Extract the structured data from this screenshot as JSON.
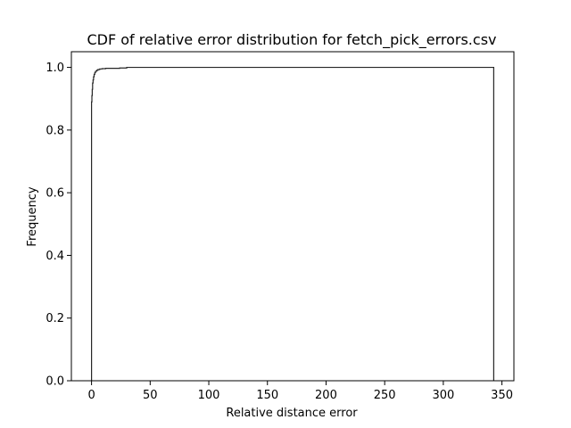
{
  "chart_data": {
    "type": "line",
    "subtype": "step-cdf",
    "title": "CDF of relative error distribution for fetch_pick_errors.csv",
    "xlabel": "Relative distance error",
    "ylabel": "Frequency",
    "xlim": [
      -17.2,
      360.2
    ],
    "ylim": [
      0,
      1.05
    ],
    "xticks": [
      0,
      50,
      100,
      150,
      200,
      250,
      300,
      350
    ],
    "yticks": [
      0.0,
      0.2,
      0.4,
      0.6,
      0.8,
      1.0
    ],
    "xtick_labels": [
      "0",
      "50",
      "100",
      "150",
      "200",
      "250",
      "300",
      "350"
    ],
    "ytick_labels": [
      "0.0",
      "0.2",
      "0.4",
      "0.6",
      "0.8",
      "1.0"
    ],
    "grid": false,
    "legend": "none",
    "line_color": "#262626",
    "series": [
      {
        "x": [
          0.0,
          0.0,
          0.3,
          0.6,
          0.9,
          1.3,
          1.7,
          2.2,
          2.8,
          3.5,
          4.5,
          5.5,
          7.0,
          9.0,
          12.0,
          16.0,
          24.0,
          30.0,
          343.0,
          343.0
        ],
        "y": [
          0.0,
          0.89,
          0.91,
          0.93,
          0.95,
          0.96,
          0.97,
          0.978,
          0.984,
          0.988,
          0.991,
          0.993,
          0.995,
          0.996,
          0.997,
          0.997,
          0.998,
          1.0,
          1.0,
          0.0
        ]
      }
    ]
  }
}
